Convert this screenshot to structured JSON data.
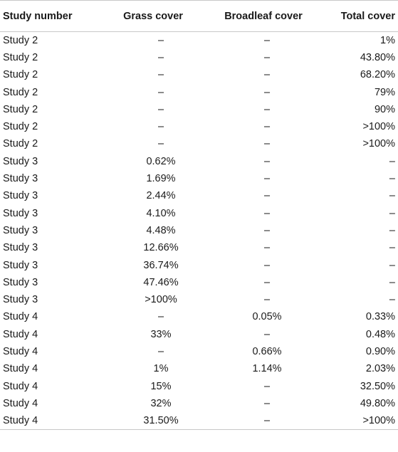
{
  "table": {
    "headers": [
      "Study number",
      "Grass cover",
      "Broadleaf cover",
      "Total cover"
    ],
    "rows": [
      [
        "Study 2",
        "–",
        "–",
        "1%"
      ],
      [
        "Study 2",
        "–",
        "–",
        "43.80%"
      ],
      [
        "Study 2",
        "–",
        "–",
        "68.20%"
      ],
      [
        "Study 2",
        "–",
        "–",
        "79%"
      ],
      [
        "Study 2",
        "–",
        "–",
        "90%"
      ],
      [
        "Study 2",
        "–",
        "–",
        ">100%"
      ],
      [
        "Study 2",
        "–",
        "–",
        ">100%"
      ],
      [
        "Study 3",
        "0.62%",
        "–",
        "–"
      ],
      [
        "Study 3",
        "1.69%",
        "–",
        "–"
      ],
      [
        "Study 3",
        "2.44%",
        "–",
        "–"
      ],
      [
        "Study 3",
        "4.10%",
        "–",
        "–"
      ],
      [
        "Study 3",
        "4.48%",
        "–",
        "–"
      ],
      [
        "Study 3",
        "12.66%",
        "–",
        "–"
      ],
      [
        "Study 3",
        "36.74%",
        "–",
        "–"
      ],
      [
        "Study 3",
        "47.46%",
        "–",
        "–"
      ],
      [
        "Study 3",
        ">100%",
        "–",
        "–"
      ],
      [
        "Study 4",
        "–",
        "0.05%",
        "0.33%"
      ],
      [
        "Study 4",
        "33%",
        "–",
        "0.48%"
      ],
      [
        "Study 4",
        "–",
        "0.66%",
        "0.90%"
      ],
      [
        "Study 4",
        "1%",
        "1.14%",
        "2.03%"
      ],
      [
        "Study 4",
        "15%",
        "–",
        "32.50%"
      ],
      [
        "Study 4",
        "32%",
        "–",
        "49.80%"
      ],
      [
        "Study 4",
        "31.50%",
        "–",
        ">100%"
      ]
    ]
  }
}
